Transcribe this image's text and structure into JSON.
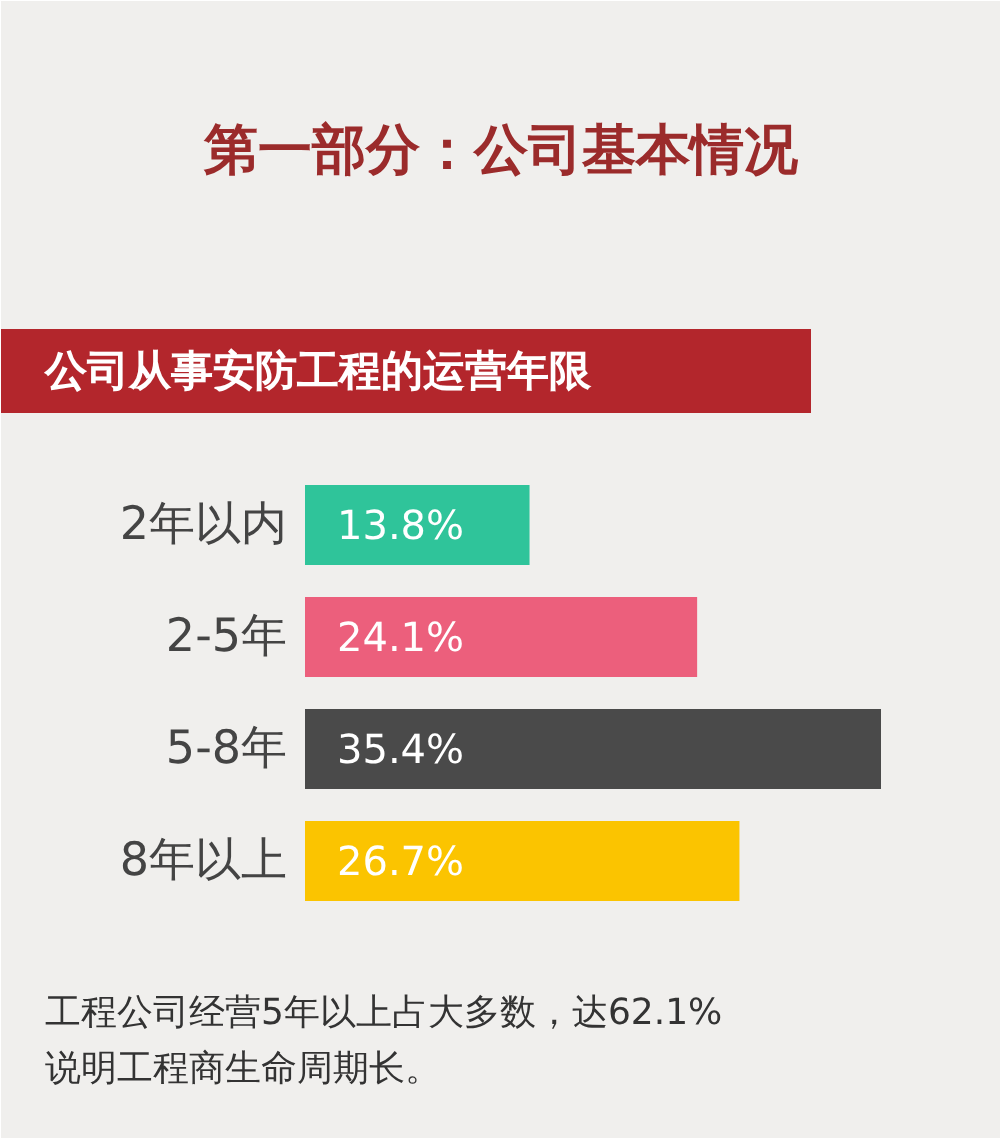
{
  "chart_data": {
    "type": "bar",
    "orientation": "horizontal",
    "title": "第一部分：公司基本情况",
    "subtitle": "公司从事安防工程的运营年限",
    "categories": [
      "2年以内",
      "2-5年",
      "5-8年",
      "8年以上"
    ],
    "values": [
      13.8,
      24.1,
      35.4,
      26.7
    ],
    "colors": [
      "#2fc49a",
      "#ec5f7c",
      "#4a4a4a",
      "#fbc400"
    ],
    "value_labels": [
      "13.8%",
      "24.1%",
      "35.4%",
      "26.7%"
    ],
    "annotations": [
      "工程公司经营5年以上占大多数，达62.1%",
      "说明工程商生命周期长。"
    ]
  }
}
